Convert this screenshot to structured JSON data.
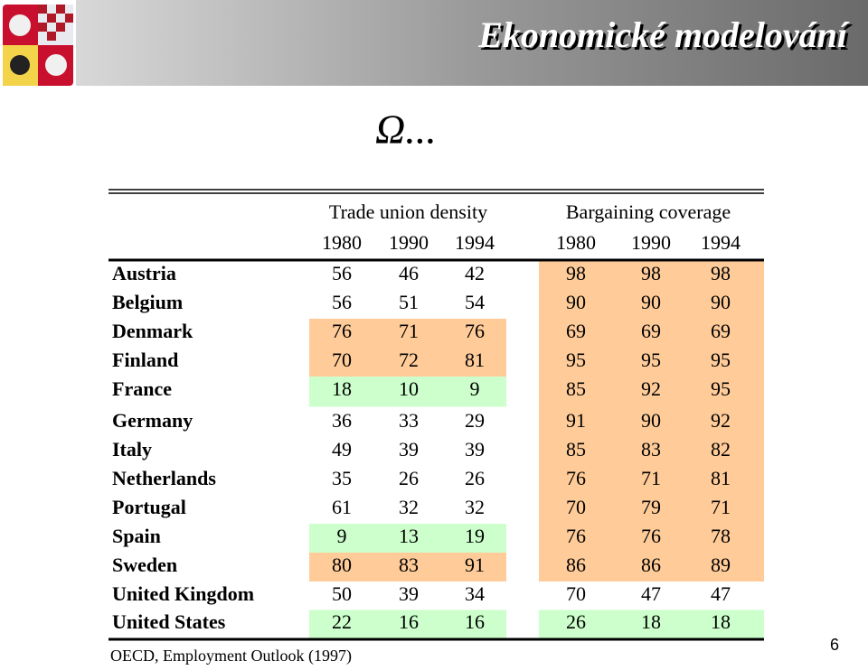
{
  "header": {
    "title": "Ekonomické modelování"
  },
  "symbol": "Ω...",
  "table": {
    "groups": [
      {
        "title": "Trade union density",
        "years": [
          1980,
          1990,
          1994
        ]
      },
      {
        "title": "Bargaining coverage",
        "years": [
          1980,
          1990,
          1994
        ]
      }
    ],
    "rows": [
      [
        "Austria",
        56,
        46,
        42,
        98,
        98,
        98
      ],
      [
        "Belgium",
        56,
        51,
        54,
        90,
        90,
        90
      ],
      [
        "Denmark",
        76,
        71,
        76,
        69,
        69,
        69
      ],
      [
        "Finland",
        70,
        72,
        81,
        95,
        95,
        95
      ],
      [
        "France",
        18,
        10,
        9,
        85,
        92,
        95
      ],
      [
        "Germany",
        36,
        33,
        29,
        91,
        90,
        92
      ],
      [
        "Italy",
        49,
        39,
        39,
        85,
        83,
        82
      ],
      [
        "Netherlands",
        35,
        26,
        26,
        76,
        71,
        81
      ],
      [
        "Portugal",
        61,
        32,
        32,
        70,
        79,
        71
      ],
      [
        "Spain",
        9,
        13,
        19,
        76,
        76,
        78
      ],
      [
        "Sweden",
        80,
        83,
        91,
        86,
        86,
        89
      ],
      [
        "United Kingdom",
        50,
        39,
        34,
        70,
        47,
        47
      ],
      [
        "United States",
        22,
        16,
        16,
        26,
        18,
        18
      ]
    ]
  },
  "source": "OECD, Employment Outlook (1997)",
  "page_number": 6
}
